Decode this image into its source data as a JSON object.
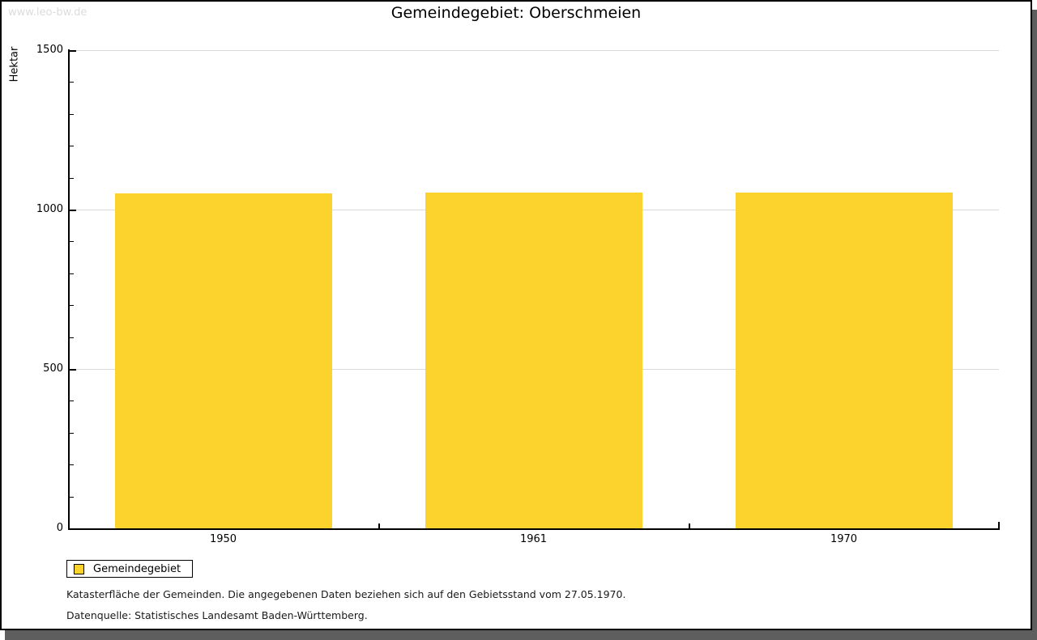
{
  "watermark": "www.leo-bw.de",
  "title": "Gemeindegebiet: Oberschmeien",
  "chart_data": {
    "type": "bar",
    "title": "Gemeindegebiet: Oberschmeien",
    "xlabel": "",
    "ylabel": "Hektar",
    "categories": [
      "1950",
      "1961",
      "1970"
    ],
    "series": [
      {
        "name": "Gemeindegebiet",
        "values": [
          1050,
          1053,
          1053
        ],
        "color": "#fcd32d"
      }
    ],
    "ylim": [
      0,
      1500
    ],
    "y_major_ticks": [
      0,
      500,
      1000,
      1500
    ],
    "y_minor_step": 100,
    "grid": "horizontal-major",
    "legend_position": "bottom-left"
  },
  "legend": {
    "items": [
      {
        "label": "Gemeindegebiet",
        "color": "#fcd32d"
      }
    ]
  },
  "footnotes": [
    "Katasterfläche der Gemeinden. Die angegebenen Daten beziehen sich auf den Gebietsstand vom 27.05.1970.",
    "Datenquelle: Statistisches Landesamt Baden-Württemberg."
  ],
  "colors": {
    "bar": "#fcd32d",
    "axis": "#000000",
    "grid": "#d9d9d9",
    "watermark": "#dcdcdc",
    "frame_shadow": "#5e5e5e"
  }
}
